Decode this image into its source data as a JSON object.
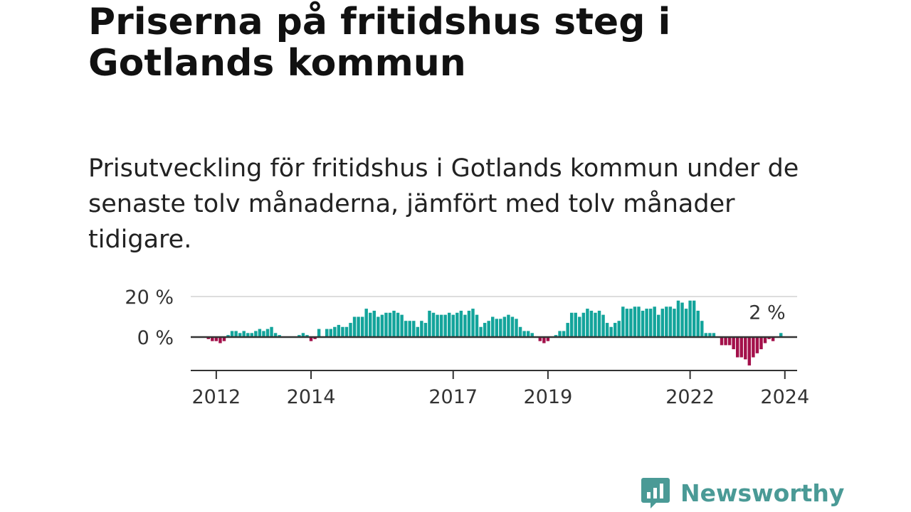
{
  "title": "Priserna på fritidshus steg i Gotlands kommun",
  "subtitle": "Prisutveckling för fritidshus i Gotlands kommun under de senaste tolv månaderna, jämfört med tolv månader tidigare.",
  "brand": {
    "name": "Newsworthy",
    "icon": "newsworthy-logo-icon"
  },
  "colors": {
    "positive": "#13a49b",
    "negative": "#a3104a",
    "axis": "#333333",
    "grid": "#dddddd"
  },
  "chart_data": {
    "type": "bar",
    "start": "2011-11",
    "frequency": "monthly",
    "y_tick_labels": [
      "20 %",
      "0 %"
    ],
    "y_ticks": [
      20,
      0
    ],
    "ylim": [
      -15,
      20
    ],
    "x_tick_labels": [
      "2012",
      "2014",
      "2017",
      "2019",
      "2022",
      "2024"
    ],
    "x_tick_months": [
      "2012-01",
      "2014-01",
      "2017-01",
      "2019-01",
      "2022-01",
      "2024-01"
    ],
    "values": [
      -1,
      -2,
      -2,
      -3,
      -2,
      1,
      3,
      3,
      2,
      3,
      2,
      2,
      3,
      4,
      3,
      4,
      5,
      2,
      1,
      0,
      0,
      0,
      0,
      1,
      2,
      1,
      -2,
      -1,
      4,
      0,
      4,
      4,
      5,
      6,
      5,
      5,
      7,
      10,
      10,
      10,
      14,
      12,
      13,
      10,
      11,
      12,
      12,
      13,
      12,
      11,
      8,
      8,
      8,
      5,
      8,
      7,
      13,
      12,
      11,
      11,
      11,
      12,
      11,
      12,
      13,
      11,
      13,
      14,
      11,
      5,
      7,
      8,
      10,
      9,
      9,
      10,
      11,
      10,
      9,
      5,
      3,
      3,
      2,
      0,
      -2,
      -3,
      -2,
      0,
      1,
      3,
      3,
      7,
      12,
      12,
      10,
      12,
      14,
      13,
      12,
      13,
      11,
      7,
      5,
      7,
      8,
      15,
      14,
      14,
      15,
      15,
      13,
      14,
      14,
      15,
      11,
      14,
      15,
      15,
      14,
      18,
      17,
      14,
      18,
      18,
      13,
      8,
      2,
      2,
      2,
      0,
      -4,
      -4,
      -4,
      -6,
      -10,
      -10,
      -11,
      -14,
      -10,
      -8,
      -6,
      -3,
      -1,
      -2,
      0,
      2
    ],
    "annotation": "2 %",
    "annotation_value": 2
  }
}
